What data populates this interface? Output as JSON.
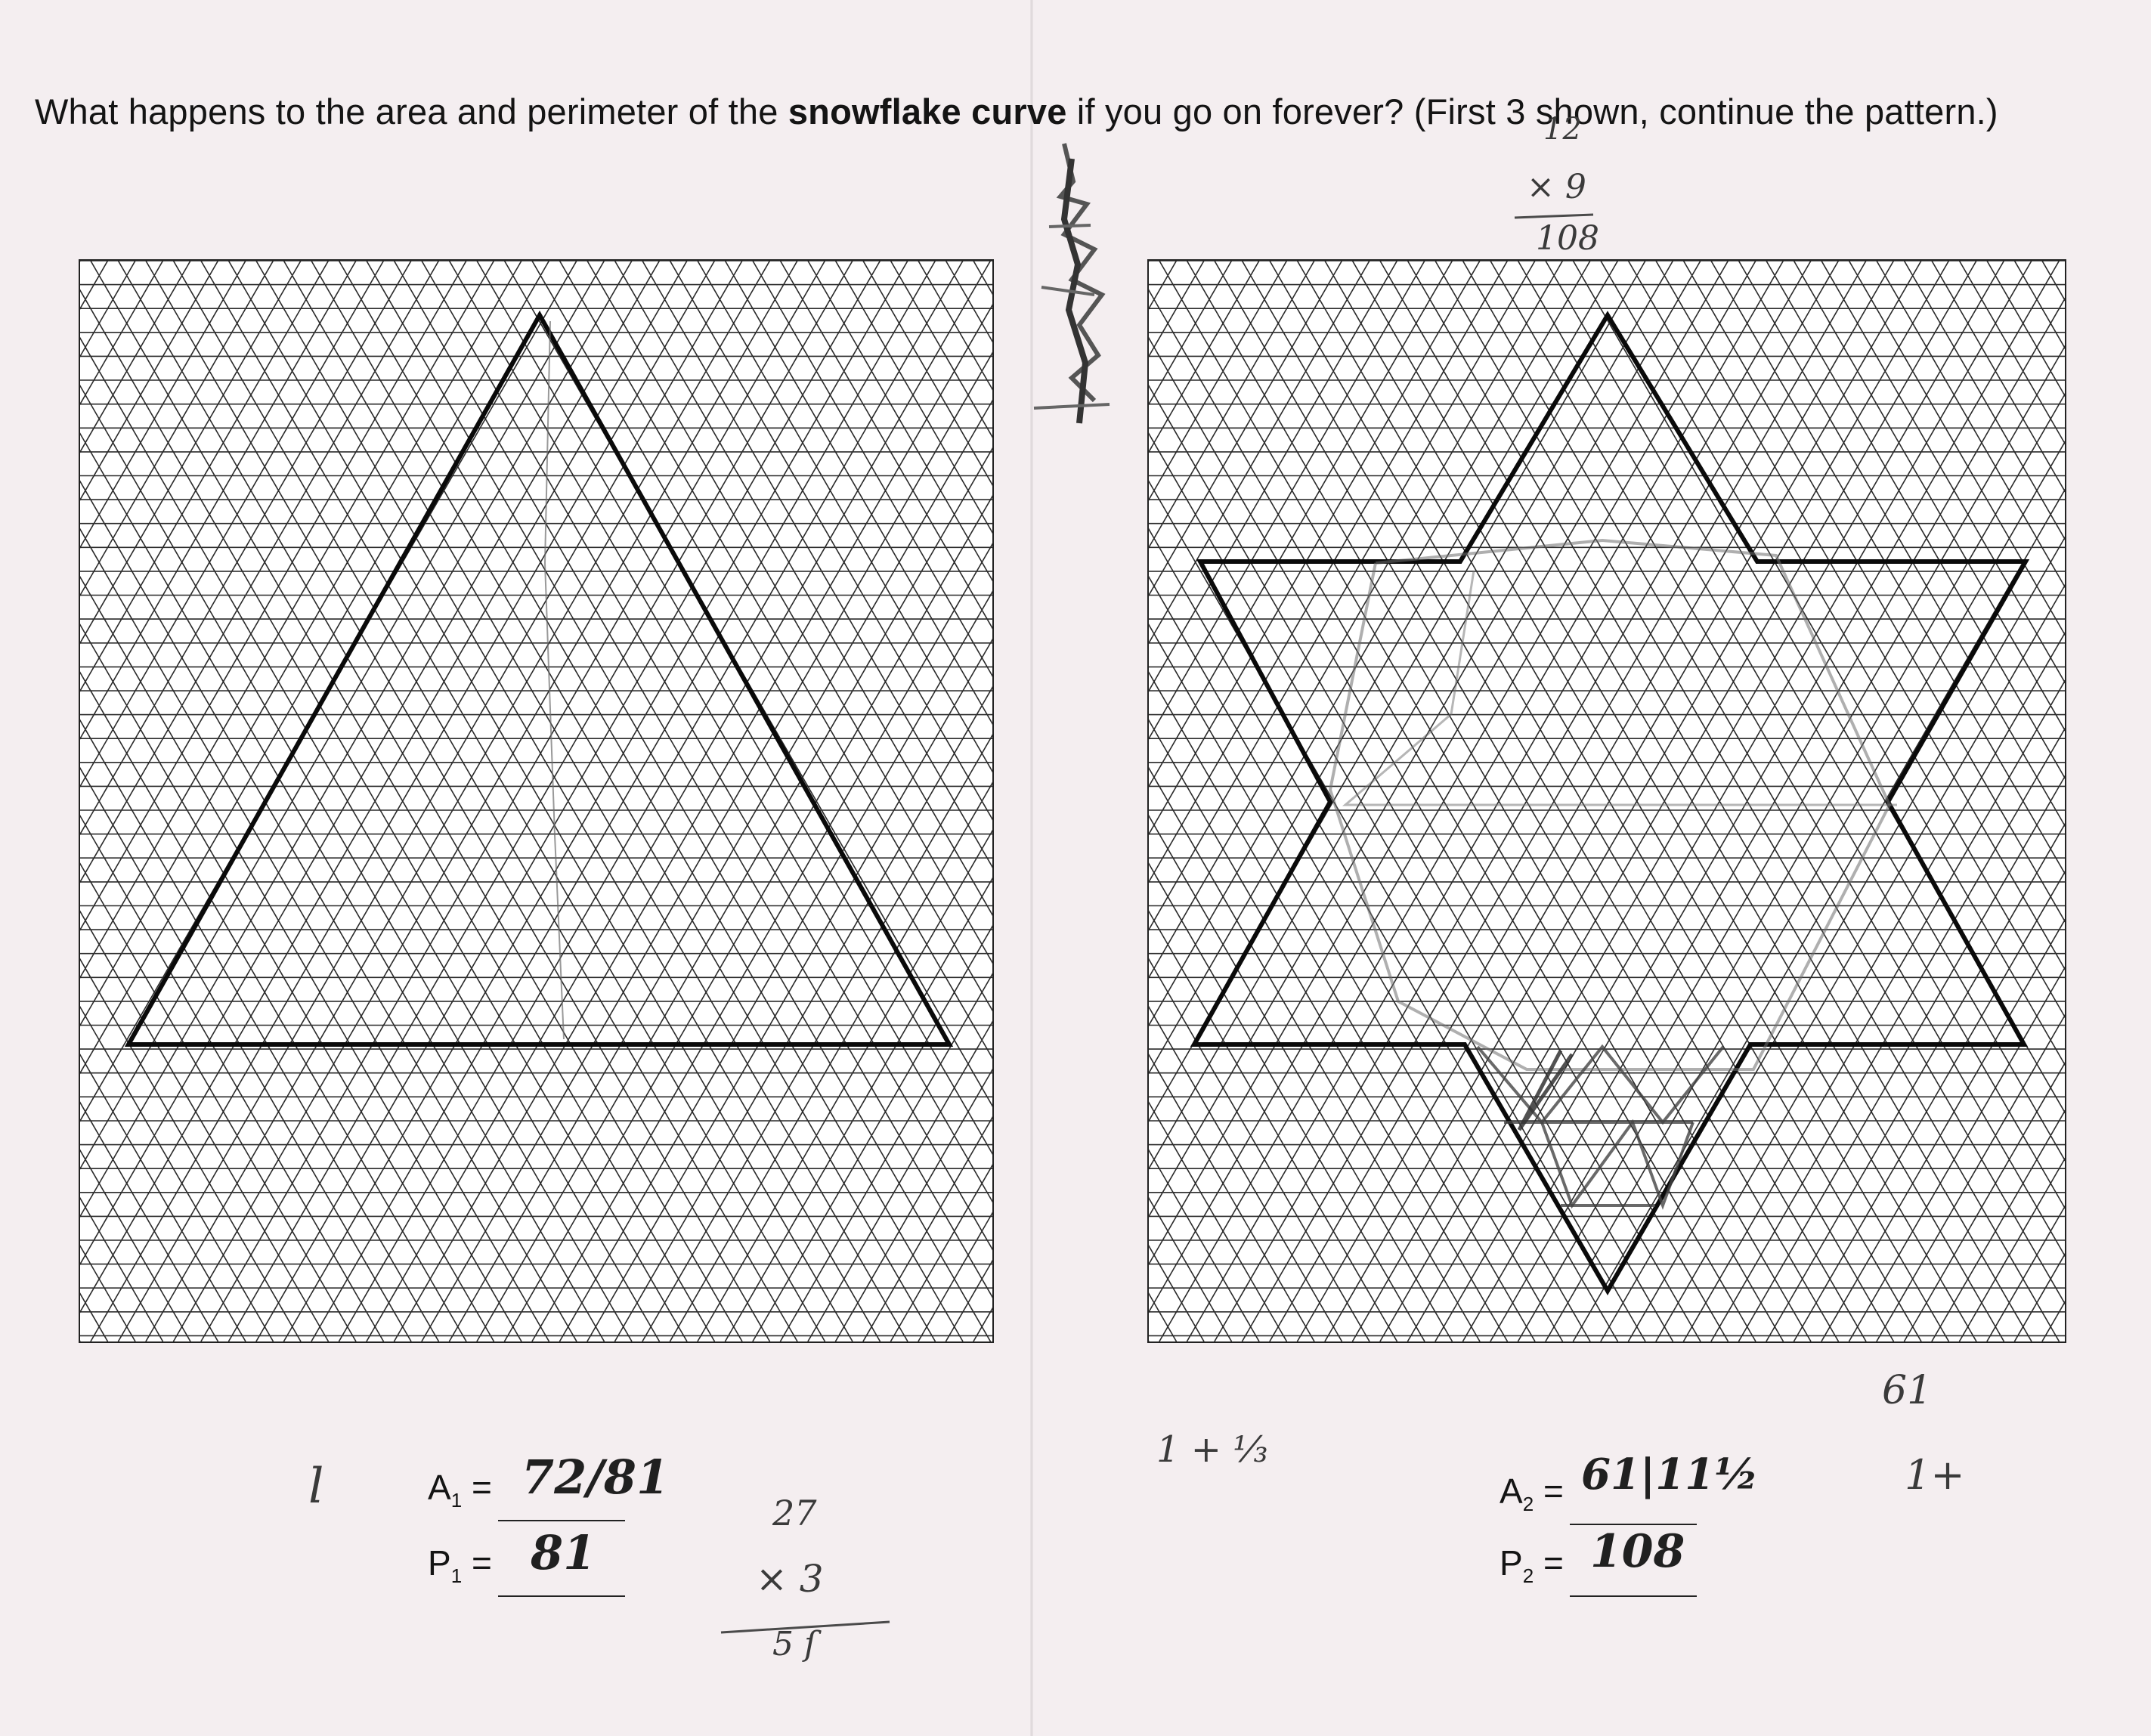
{
  "prompt": {
    "before": "What happens to the area and perimeter of the ",
    "emphasis": "snowflake curve",
    "after": " if you go on forever? (First 3 shown, continue the pattern.)"
  },
  "stage1": {
    "area_label": "A",
    "area_index": "1",
    "perimeter_label": "P",
    "perimeter_index": "1",
    "equals": "=",
    "area_handwritten": "72/81",
    "perimeter_handwritten": "81",
    "margin_note": "l"
  },
  "stage2": {
    "area_label": "A",
    "area_index": "2",
    "perimeter_label": "P",
    "perimeter_index": "2",
    "equals": "=",
    "area_handwritten": "61|11½",
    "perimeter_handwritten": "108",
    "margin_note_top": "61",
    "margin_note_side": "1+"
  },
  "scratch_work": {
    "top_right_line1": "12",
    "top_right_line2": "× 9",
    "top_right_line3": "108",
    "middle_fraction": "1 + ⅓",
    "bottom_line1": "27",
    "bottom_line2": "× 3",
    "bottom_line3": "5 ſ"
  },
  "colors": {
    "paper": "#f4eef0",
    "grid_line": "#2a2a2a",
    "shape_line": "#0a0a0a",
    "pencil": "#6d6d6d"
  }
}
